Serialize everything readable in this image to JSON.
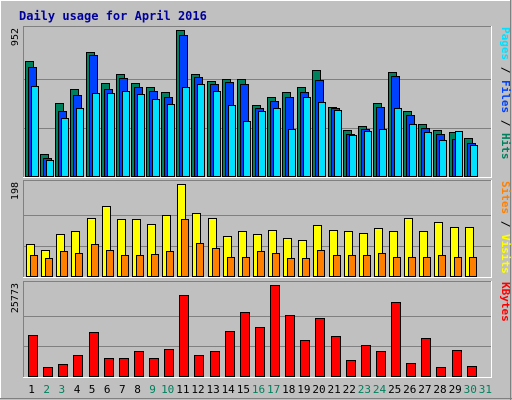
{
  "chart_data": {
    "type": "bar",
    "title": "Daily usage for April 2016",
    "categories": [
      "1",
      "2",
      "3",
      "4",
      "5",
      "6",
      "7",
      "8",
      "9",
      "10",
      "11",
      "12",
      "13",
      "14",
      "15",
      "16",
      "17",
      "18",
      "19",
      "20",
      "21",
      "22",
      "23",
      "24",
      "25",
      "26",
      "27",
      "28",
      "29",
      "30",
      "31"
    ],
    "weekend_days": [
      "2",
      "3",
      "9",
      "10",
      "16",
      "17",
      "23",
      "24",
      "30",
      "31"
    ],
    "colors": {
      "background": "#c0c0c0",
      "plot_area": "#c0c0c0",
      "hits": "#00805c",
      "files": "#0040ff",
      "pages": "#00e0ff",
      "visits": "#ffff00",
      "sites": "#ff8000",
      "kbytes": "#ff0000",
      "title": "#00009c",
      "weekday_label": "#000000",
      "weekend_label": "#00805c"
    },
    "panels": [
      {
        "id": "hits-files-pages",
        "ymax_label": "952",
        "ylim": [
          0,
          952
        ],
        "vertical_label_parts": [
          {
            "text": "Pages",
            "color": "#00e0ff"
          },
          {
            "text": " / ",
            "color": "#000000"
          },
          {
            "text": "Files",
            "color": "#0040ff"
          },
          {
            "text": " / ",
            "color": "#000000"
          },
          {
            "text": "Hits",
            "color": "#00805c"
          }
        ],
        "series": [
          {
            "name": "Hits",
            "color": "#00805c",
            "values": [
              750,
              150,
              480,
              570,
              810,
              610,
              665,
              610,
              585,
              550,
              952,
              670,
              620,
              635,
              635,
              465,
              515,
              550,
              580,
              695,
              455,
              305,
              330,
              480,
              680,
              425,
              345,
              305,
              290,
              250,
              0
            ]
          },
          {
            "name": "Files",
            "color": "#0040ff",
            "values": [
              715,
              120,
              430,
              530,
              790,
              570,
              640,
              585,
              555,
              520,
              920,
              650,
              600,
              615,
              600,
              445,
              490,
              520,
              550,
              630,
              450,
              280,
              310,
              455,
              655,
              400,
              315,
              280,
              245,
              220,
              0
            ]
          },
          {
            "name": "Pages",
            "color": "#00e0ff",
            "values": [
              590,
              110,
              380,
              450,
              545,
              545,
              555,
              535,
              505,
              470,
              585,
              605,
              555,
              465,
              360,
              430,
              450,
              310,
              515,
              485,
              435,
              270,
              300,
              310,
              450,
              340,
              290,
              240,
              300,
              210,
              0
            ]
          }
        ]
      },
      {
        "id": "visits-sites",
        "ymax_label": "198",
        "ylim": [
          0,
          198
        ],
        "vertical_label_parts": [
          {
            "text": "Sites",
            "color": "#ff8000"
          },
          {
            "text": " / ",
            "color": "#000000"
          },
          {
            "text": "Visits",
            "color": "#ffff00"
          }
        ],
        "series": [
          {
            "name": "Visits",
            "color": "#ffff00",
            "values": [
              70,
              58,
              91,
              97,
              126,
              152,
              123,
              123,
              113,
              133,
              198,
              136,
              126,
              87,
              97,
              91,
              100,
              82,
              79,
              110,
              100,
              97,
              94,
              105,
              97,
              126,
              97,
              117,
              107,
              107,
              0
            ]
          },
          {
            "name": "Sites",
            "color": "#ff8000",
            "values": [
              46,
              40,
              55,
              52,
              70,
              58,
              46,
              46,
              49,
              55,
              123,
              73,
              61,
              43,
              43,
              55,
              52,
              40,
              40,
              58,
              46,
              46,
              46,
              52,
              43,
              43,
              43,
              46,
              43,
              43,
              0
            ]
          }
        ]
      },
      {
        "id": "kbytes",
        "ymax_label": "25773",
        "ylim": [
          0,
          25773
        ],
        "vertical_label_parts": [
          {
            "text": "KBytes",
            "color": "#ff0000"
          }
        ],
        "series": [
          {
            "name": "KBytes",
            "color": "#ff0000",
            "values": [
              11700,
              2700,
              3600,
              6300,
              12600,
              5400,
              5400,
              7200,
              5400,
              7800,
              23100,
              6300,
              7200,
              12900,
              18300,
              14100,
              25773,
              17400,
              10500,
              16500,
              11400,
              4800,
              9000,
              7200,
              21000,
              3900,
              10800,
              2700,
              7500,
              3000,
              0
            ]
          }
        ]
      }
    ]
  }
}
